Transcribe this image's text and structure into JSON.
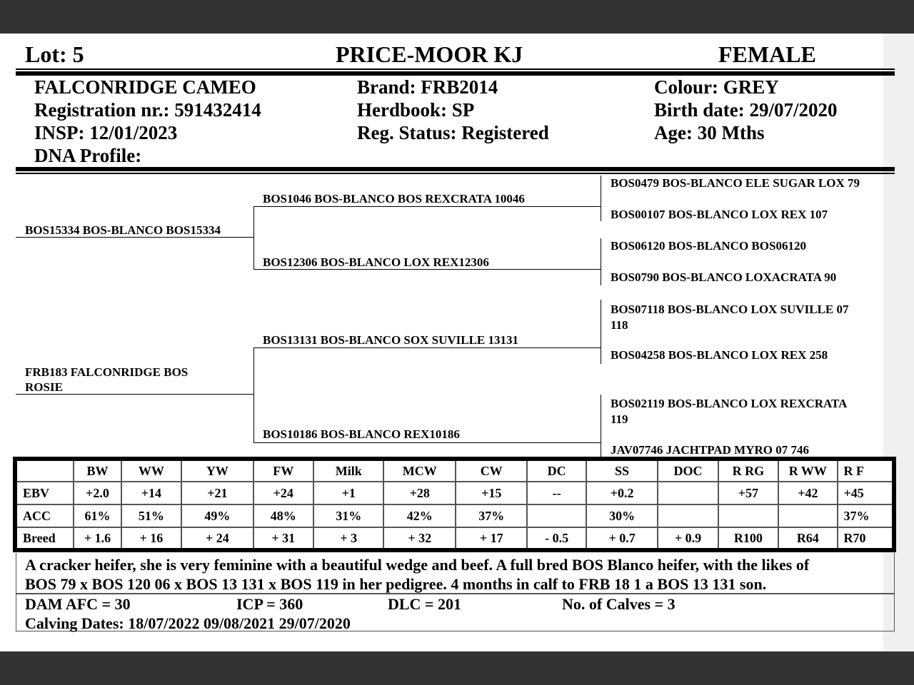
{
  "header": {
    "lot": "Lot:  5",
    "vendor": "PRICE-MOOR KJ",
    "sex": "FEMALE"
  },
  "animal": {
    "name": "FALCONRIDGE CAMEO",
    "registration": "Registration nr.: 591432414",
    "insp": "INSP: 12/01/2023",
    "dna": "DNA Profile:",
    "brand": "Brand:  FRB2014",
    "herdbook": "Herdbook: SP",
    "reg_status": "Reg. Status: Registered",
    "colour": "Colour:  GREY",
    "birth_date": "Birth date:  29/07/2020",
    "age": "Age: 30 Mths"
  },
  "pedigree": {
    "sire": "BOS15334 BOS-BLANCO BOS15334",
    "dam": [
      "FRB183 FALCONRIDGE BOS",
      "ROSIE"
    ],
    "sire_sire": "BOS1046 BOS-BLANCO BOS REXCRATA 10046",
    "sire_dam": "BOS12306 BOS-BLANCO LOX REX12306",
    "dam_sire": "BOS13131 BOS-BLANCO SOX SUVILLE 13131",
    "dam_dam": "BOS10186 BOS-BLANCO REX10186",
    "great": [
      [
        "BOS0479 BOS-BLANCO ELE SUGAR LOX 79"
      ],
      [
        "BOS00107 BOS-BLANCO LOX REX 107"
      ],
      [
        "BOS06120 BOS-BLANCO BOS06120"
      ],
      [
        "BOS0790 BOS-BLANCO LOXACRATA 90"
      ],
      [
        "BOS07118 BOS-BLANCO LOX SUVILLE 07",
        "118"
      ],
      [
        "BOS04258 BOS-BLANCO LOX REX 258"
      ],
      [
        "BOS02119 BOS-BLANCO LOX REXCRATA",
        "119"
      ],
      [
        "JAV07746 JACHTPAD MYRO 07 746"
      ]
    ]
  },
  "ebv_table": {
    "headers": [
      "",
      "BW",
      "WW",
      "YW",
      "FW",
      "Milk",
      "MCW",
      "CW",
      "DC",
      "SS",
      "DOC",
      "R RG",
      "R WW",
      "R F"
    ],
    "rows": [
      [
        "EBV",
        "+2.0",
        "+14",
        "+21",
        "+24",
        "+1",
        "+28",
        "+15",
        "--",
        "+0.2",
        "",
        "+57",
        "+42",
        "+45"
      ],
      [
        "ACC",
        "61%",
        "51%",
        "49%",
        "48%",
        "31%",
        "42%",
        "37%",
        "",
        "30%",
        "",
        "",
        "",
        "37%"
      ],
      [
        "Breed",
        "+ 1.6",
        "+ 16",
        "+ 24",
        "+ 31",
        "+ 3",
        "+ 32",
        "+ 17",
        "- 0.5",
        "+ 0.7",
        "+ 0.9",
        "R100",
        "R64",
        "R70"
      ]
    ]
  },
  "comments": {
    "line1": "A cracker heifer, she is very feminine with a beautiful wedge and beef. A full bred BOS Blanco heifer, with the likes of",
    "line2": "BOS 79 x BOS 120 06 x BOS 13 131 x BOS 119 in her pedigree. 4 months in calf to FRB 18 1 a BOS 13 131 son."
  },
  "dam_stats": {
    "afc": "DAM AFC = 30",
    "icp": "ICP = 360",
    "dlc": "DLC = 201",
    "calves": "No. of Calves = 3",
    "calving_dates": "Calving Dates: 18/07/2022  09/08/2021  29/07/2020"
  }
}
